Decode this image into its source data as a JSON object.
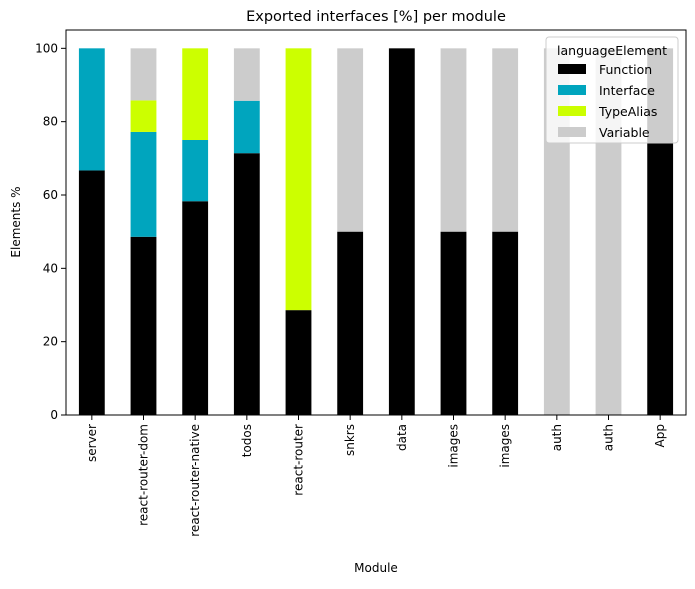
{
  "chart_data": {
    "type": "bar",
    "stacked": true,
    "title": "Exported interfaces [%] per module",
    "xlabel": "Module",
    "ylabel": "Elements %",
    "ylim": [
      0,
      105
    ],
    "yticks": [
      0,
      20,
      40,
      60,
      80,
      100
    ],
    "grid": false,
    "categories": [
      "server",
      "react-router-dom",
      "react-router-native",
      "todos",
      "react-router",
      "snkrs",
      "data",
      "images",
      "images",
      "auth",
      "auth",
      "App"
    ],
    "series": [
      {
        "name": "Function",
        "color": "#000000",
        "values": [
          66.7,
          48.6,
          58.3,
          71.4,
          28.6,
          50,
          100,
          50,
          50,
          0,
          0,
          100
        ]
      },
      {
        "name": "Interface",
        "color": "#00a5be",
        "values": [
          33.3,
          28.6,
          16.7,
          14.3,
          0,
          0,
          0,
          0,
          0,
          0,
          0,
          0
        ]
      },
      {
        "name": "TypeAlias",
        "color": "#ccff00",
        "values": [
          0,
          8.6,
          25,
          0,
          71.4,
          0,
          0,
          0,
          0,
          0,
          0,
          0
        ]
      },
      {
        "name": "Variable",
        "color": "#cccccc",
        "values": [
          0,
          14.2,
          0,
          14.3,
          0,
          50,
          0,
          50,
          50,
          100,
          100,
          0
        ]
      }
    ],
    "legend": {
      "title": "languageElement",
      "placement": "top-right"
    }
  }
}
